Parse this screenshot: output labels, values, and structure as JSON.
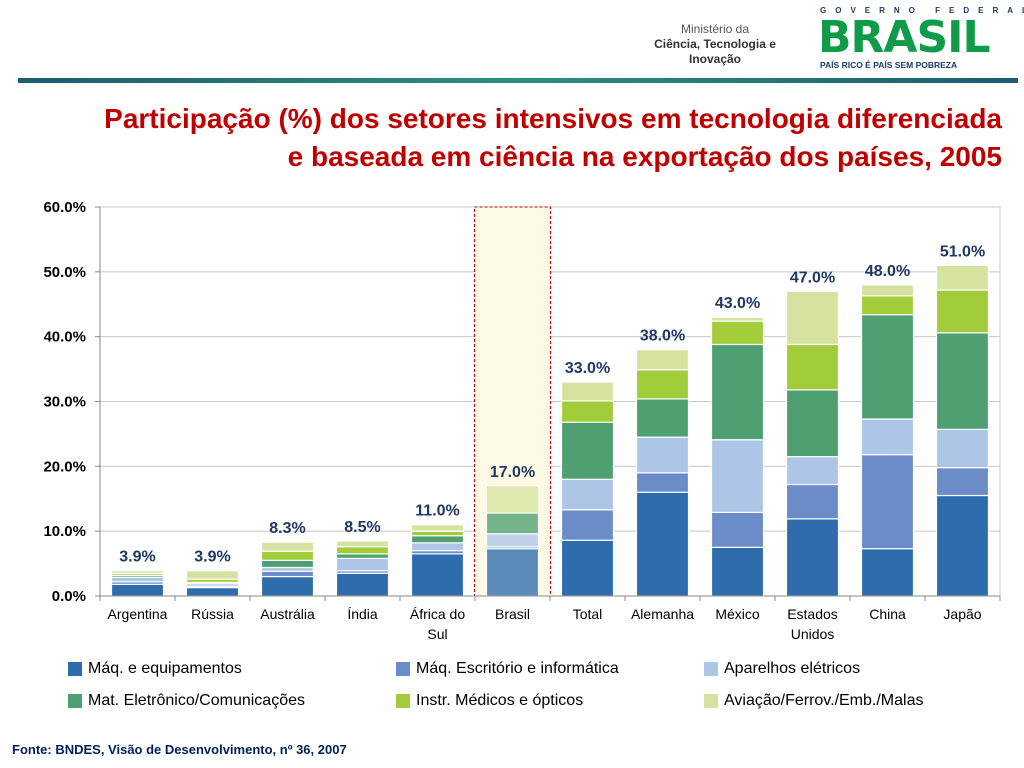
{
  "header": {
    "ministry_line1": "Ministério da",
    "ministry_line2": "Ciência, Tecnologia e",
    "ministry_line3": "Inovação",
    "logo_top": "GOVERNO FEDERAL",
    "logo_word": "BRASIL",
    "logo_slogan": "PAÍS RICO É PAÍS SEM POBREZA"
  },
  "title_line1": "Participação (%) dos setores intensivos em tecnologia diferenciada",
  "title_line2": "e baseada em ciência na exportação dos países, 2005",
  "source": "Fonte: BNDES, Visão de Desenvolvimento, nº 36, 2007",
  "colors": {
    "title": "#c00000",
    "total_label": "#1f3864",
    "highlight_fill": "#fdfbe6",
    "highlight_border": "#c00000"
  },
  "chart_data": {
    "type": "bar",
    "stacked": true,
    "title": "Participação (%) dos setores intensivos em tecnologia diferenciada e baseada em ciência na exportação dos países, 2005",
    "xlabel": "",
    "ylabel": "",
    "ylim": [
      0,
      60
    ],
    "yticks": [
      "0.0%",
      "10.0%",
      "20.0%",
      "30.0%",
      "40.0%",
      "50.0%",
      "60.0%"
    ],
    "grid": true,
    "highlight_category": "Brasil",
    "categories": [
      "Argentina",
      "Rússia",
      "Austrália",
      "Índia",
      "África do Sul",
      "Brasil",
      "Total",
      "Alemanha",
      "México",
      "Estados Unidos",
      "China",
      "Japão"
    ],
    "totals": [
      3.9,
      3.9,
      8.3,
      8.5,
      11.0,
      17.0,
      33.0,
      38.0,
      43.0,
      47.0,
      48.0,
      51.0
    ],
    "total_labels": [
      "3.9%",
      "3.9%",
      "8.3%",
      "8.5%",
      "11.0%",
      "17.0%",
      "33.0%",
      "38.0%",
      "43.0%",
      "47.0%",
      "48.0%",
      "51.0%"
    ],
    "series": [
      {
        "name": "Máq. e equipamentos",
        "color": "#2e6cad",
        "values": [
          1.8,
          1.3,
          3.0,
          3.5,
          6.5,
          7.3,
          8.6,
          16.0,
          7.5,
          11.9,
          7.3,
          15.5
        ]
      },
      {
        "name": "Máq. Escritório e informática",
        "color": "#6b8cc9",
        "values": [
          0.4,
          0.2,
          0.8,
          0.4,
          0.5,
          0.3,
          4.7,
          3.0,
          5.4,
          5.3,
          14.5,
          4.3
        ]
      },
      {
        "name": "Aparelhos elétricos",
        "color": "#aec6e6",
        "values": [
          0.7,
          0.4,
          0.6,
          1.9,
          1.2,
          2.0,
          4.7,
          5.5,
          11.2,
          4.3,
          5.5,
          5.9
        ]
      },
      {
        "name": "Mat. Eletrônico/Comunicações",
        "color": "#4ea073",
        "values": [
          0.3,
          0.2,
          1.1,
          0.7,
          1.1,
          3.2,
          8.8,
          5.9,
          14.7,
          10.3,
          16.1,
          14.9
        ]
      },
      {
        "name": "Instr. Médicos e ópticos",
        "color": "#a3cc3a",
        "values": [
          0.3,
          0.5,
          1.4,
          1.1,
          0.7,
          0.0,
          3.3,
          4.5,
          3.6,
          7.0,
          2.9,
          6.6
        ]
      },
      {
        "name": "Aviação/Ferrov./Emb./Malas",
        "color": "#d6e3a0",
        "values": [
          0.4,
          1.3,
          1.4,
          0.9,
          1.0,
          4.2,
          2.9,
          3.1,
          0.6,
          8.2,
          1.7,
          3.8
        ]
      }
    ]
  }
}
